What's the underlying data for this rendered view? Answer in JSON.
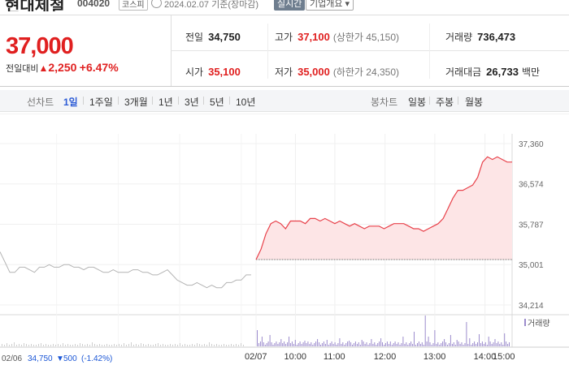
{
  "stock": {
    "name": "현대제철",
    "code": "004020",
    "market": "코스피",
    "date_basis": "2024.02.07 기준(장마감)",
    "realtime_label": "실시간",
    "company_info_label": "기업개요"
  },
  "summary": {
    "price": "37,000",
    "change_label": "전일대비",
    "change_arrow": "▲",
    "change_value": "2,250",
    "change_percent": "+6.47%",
    "prev_close_label": "전일",
    "prev_close": "34,750",
    "open_label": "시가",
    "open": "35,100",
    "high_label": "고가",
    "high": "37,100",
    "upper_limit": "(상한가 45,150)",
    "low_label": "저가",
    "low": "35,000",
    "lower_limit": "(하한가 24,350)",
    "volume_label": "거래량",
    "volume": "736,473",
    "amount_label": "거래대금",
    "amount": "26,733",
    "amount_unit": "백만"
  },
  "tabs": {
    "line_chart_label": "선차트",
    "periods": [
      "1일",
      "1주일",
      "3개월",
      "1년",
      "3년",
      "5년",
      "10년"
    ],
    "selected_period": "1일",
    "candle_chart_label": "봉차트",
    "candle_periods": [
      "일봉",
      "주봉",
      "월봉"
    ]
  },
  "colors": {
    "up": "#e02020",
    "down": "#1c57d6",
    "today_line": "#e8414a",
    "today_fill": "#fde5e6",
    "prev_line": "#b4b4b4",
    "volume_today": "#9c8ccd",
    "volume_prev": "#cfcfcf"
  },
  "chart_data": {
    "type": "line",
    "y_ticks": [
      "37,360",
      "36,574",
      "35,787",
      "35,001",
      "34,214"
    ],
    "ylim": [
      34214,
      37360
    ],
    "x_labels": [
      "02/06",
      "02/07",
      "10:00",
      "11:00",
      "12:00",
      "13:00",
      "14:00",
      "15:00"
    ],
    "prev_day_info": {
      "date": "02/06",
      "close": "34,750",
      "arrow": "▼",
      "change": "500",
      "percent": "(-1.42%)"
    },
    "volume_label": "거래량",
    "reference_line": 34750,
    "series": [
      {
        "name": "02/06",
        "x": [
          0,
          1,
          2,
          3,
          4,
          5,
          6,
          7,
          8,
          9,
          10,
          11,
          12,
          13,
          14,
          15,
          16,
          17,
          18,
          19,
          20,
          21,
          22,
          23,
          24,
          25,
          26,
          27,
          28,
          29,
          30,
          31,
          32,
          33,
          34,
          35,
          36,
          37,
          38,
          39,
          40,
          41,
          42,
          43,
          44,
          45,
          46,
          47,
          48,
          49,
          50,
          51
        ],
        "values": [
          35250,
          35050,
          34850,
          34850,
          34950,
          34950,
          34900,
          34850,
          34950,
          34950,
          35000,
          34950,
          34950,
          35000,
          35000,
          34950,
          34950,
          34900,
          34950,
          34950,
          34900,
          34850,
          34850,
          34900,
          34850,
          34850,
          34850,
          34900,
          34900,
          34850,
          34850,
          34800,
          34800,
          34850,
          34900,
          34800,
          34700,
          34650,
          34600,
          34600,
          34650,
          34600,
          34550,
          34600,
          34550,
          34550,
          34650,
          34650,
          34700,
          34700,
          34800,
          34800
        ]
      },
      {
        "name": "02/07",
        "x": [
          52,
          53,
          54,
          55,
          56,
          57,
          58,
          59,
          60,
          61,
          62,
          63,
          64,
          65,
          66,
          67,
          68,
          69,
          70,
          71,
          72,
          73,
          74,
          75,
          76,
          77,
          78,
          79,
          80,
          81,
          82,
          83,
          84,
          85,
          86,
          87,
          88,
          89,
          90,
          91,
          92,
          93,
          94,
          95,
          96,
          97,
          98,
          99,
          100,
          101,
          102,
          103,
          104
        ],
        "values": [
          35100,
          35300,
          35600,
          35800,
          35850,
          35800,
          35700,
          35850,
          35850,
          35850,
          35800,
          35900,
          35900,
          35850,
          35900,
          35850,
          35800,
          35850,
          35800,
          35750,
          35800,
          35750,
          35700,
          35750,
          35750,
          35750,
          35700,
          35750,
          35800,
          35800,
          35800,
          35750,
          35700,
          35700,
          35650,
          35700,
          35750,
          35800,
          35900,
          36100,
          36300,
          36450,
          36450,
          36500,
          36550,
          36700,
          37000,
          37100,
          37050,
          37100,
          37050,
          37000,
          37000
        ]
      }
    ]
  }
}
